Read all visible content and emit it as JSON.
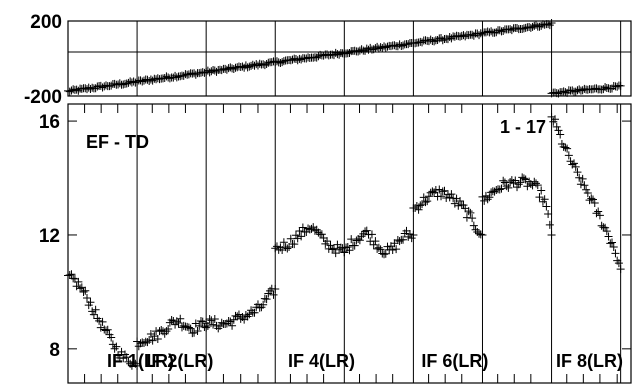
{
  "chart_data": [
    {
      "type": "scatter",
      "panel": "phase",
      "ylim": [
        -200,
        200
      ],
      "yticks": [
        200,
        -200
      ],
      "hline": 35,
      "segments": [
        {
          "x0": 0,
          "x1": 7,
          "y0": -175,
          "y1": 185
        },
        {
          "x0": 7,
          "x1": 8,
          "y0": -185,
          "y1": -150
        }
      ]
    },
    {
      "type": "scatter",
      "panel": "amplitude",
      "ylim": [
        6.8,
        16.6
      ],
      "yticks": [
        16,
        12,
        8
      ],
      "xlim": [
        0,
        8.15
      ],
      "band_separators": [
        1,
        2,
        3,
        4,
        5,
        6,
        7,
        8
      ],
      "marked_ticks": [
        0.24,
        0.48,
        0.72,
        1.22,
        1.46,
        1.7,
        2.25,
        2.5,
        2.75,
        3.22,
        3.46,
        3.7,
        4.22,
        4.46,
        4.7,
        5.22,
        5.46,
        5.7,
        6.22,
        6.46,
        6.7,
        7.22,
        7.46,
        7.7,
        7.95
      ],
      "top_ticks": [
        0.24,
        0.48,
        0.72,
        1.22,
        1.46,
        1.7,
        2.25,
        2.5,
        2.75,
        3.22,
        3.46,
        3.7,
        4.22,
        4.46,
        4.7,
        5.22,
        5.46,
        5.7,
        6.22,
        6.46,
        6.7,
        7.22,
        7.46,
        7.7,
        7.95
      ],
      "series": [
        {
          "x": [
            0.0,
            0.1,
            0.2,
            0.3,
            0.4,
            0.5,
            0.6,
            0.7,
            0.8,
            0.9,
            1.0
          ],
          "y": [
            10.5,
            10.4,
            10.1,
            9.7,
            9.2,
            8.8,
            8.4,
            8.0,
            7.7,
            7.6,
            7.4
          ]
        },
        {
          "x": [
            1.0,
            1.1,
            1.2,
            1.3,
            1.4,
            1.5,
            1.6,
            1.7,
            1.8,
            1.9,
            2.0
          ],
          "y": [
            8.2,
            8.35,
            8.4,
            8.5,
            8.7,
            8.9,
            9.0,
            8.85,
            8.7,
            8.8,
            8.9
          ]
        },
        {
          "x": [
            2.0,
            2.1,
            2.2,
            2.3,
            2.4,
            2.5,
            2.6,
            2.7,
            2.8,
            2.9,
            3.0
          ],
          "y": [
            8.9,
            8.9,
            8.85,
            8.9,
            9.0,
            9.1,
            9.2,
            9.3,
            9.5,
            9.8,
            10.1
          ]
        },
        {
          "x": [
            3.0,
            3.1,
            3.2,
            3.3,
            3.4,
            3.5,
            3.6,
            3.7,
            3.8,
            3.9,
            4.0
          ],
          "y": [
            11.5,
            11.6,
            11.7,
            11.9,
            12.1,
            12.3,
            12.1,
            11.8,
            11.6,
            11.5,
            11.4
          ]
        },
        {
          "x": [
            4.0,
            4.1,
            4.2,
            4.3,
            4.4,
            4.5,
            4.6,
            4.7,
            4.8,
            4.9,
            5.0
          ],
          "y": [
            11.4,
            11.7,
            11.9,
            12.1,
            11.9,
            11.6,
            11.4,
            11.5,
            11.8,
            12.0,
            12.0
          ]
        },
        {
          "x": [
            5.0,
            5.1,
            5.2,
            5.3,
            5.4,
            5.5,
            5.6,
            5.7,
            5.8,
            5.9,
            6.0
          ],
          "y": [
            12.9,
            13.1,
            13.3,
            13.45,
            13.5,
            13.4,
            13.2,
            13.0,
            12.7,
            12.3,
            12.0
          ]
        },
        {
          "x": [
            6.0,
            6.1,
            6.2,
            6.3,
            6.4,
            6.5,
            6.6,
            6.7,
            6.8,
            6.9,
            7.0
          ],
          "y": [
            13.2,
            13.4,
            13.6,
            13.75,
            13.8,
            13.85,
            13.85,
            13.8,
            13.6,
            13.2,
            12.0
          ]
        },
        {
          "x": [
            7.0,
            7.1,
            7.2,
            7.3,
            7.4,
            7.5,
            7.6,
            7.7,
            7.8,
            7.9,
            8.0
          ],
          "y": [
            16.2,
            15.6,
            15.0,
            14.5,
            14.0,
            13.6,
            13.1,
            12.6,
            12.1,
            11.6,
            10.8
          ]
        }
      ]
    }
  ],
  "annotations": {
    "label_top_left": "EF - TD",
    "label_top_right": "1 - 17"
  },
  "if_labels": [
    {
      "text": "IF 1(LR)",
      "x": 1.05
    },
    {
      "text": "IF 2(LR)",
      "x": 1.62
    },
    {
      "text": "IF 4(LR)",
      "x": 3.67
    },
    {
      "text": "IF 6(LR)",
      "x": 5.6
    },
    {
      "text": "IF 8(LR)",
      "x": 7.55
    }
  ]
}
